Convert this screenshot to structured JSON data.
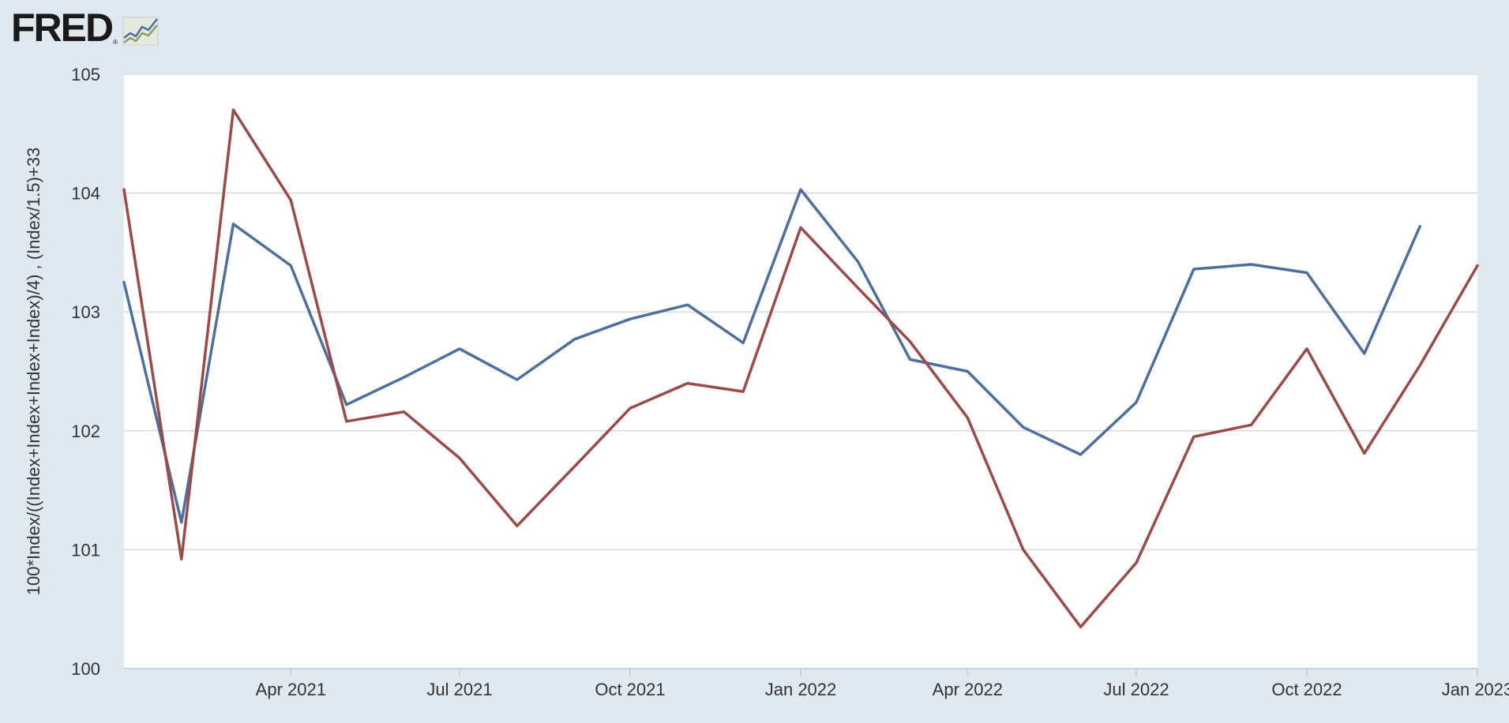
{
  "brand": {
    "logo_text": "FRED",
    "logo_mark": "®",
    "logo_icon": "line-chart-icon"
  },
  "colors": {
    "background": "#e1e9f0",
    "plot_background": "#ffffff",
    "grid": "#d9d9d9",
    "series_1": "#4e6f9e",
    "series_2": "#9c4a48"
  },
  "chart_data": {
    "type": "line",
    "ylabel": "100*Index/((Index+Index+Index+Index)/4) , (Index/1.5)+33",
    "xlabel": "",
    "ylim": [
      100,
      105
    ],
    "yticks": [
      100,
      101,
      102,
      103,
      104,
      105
    ],
    "xlim": [
      "2021-01-01",
      "2023-01-01"
    ],
    "xticks": [
      {
        "date": "2021-04-01",
        "label": "Apr 2021"
      },
      {
        "date": "2021-07-01",
        "label": "Jul 2021"
      },
      {
        "date": "2021-10-01",
        "label": "Oct 2021"
      },
      {
        "date": "2022-01-01",
        "label": "Jan 2022"
      },
      {
        "date": "2022-04-01",
        "label": "Apr 2022"
      },
      {
        "date": "2022-07-01",
        "label": "Jul 2022"
      },
      {
        "date": "2022-10-01",
        "label": "Oct 2022"
      },
      {
        "date": "2023-01-01",
        "label": "Jan 2023"
      }
    ],
    "grid": true,
    "series": [
      {
        "color": "#4e6f9e",
        "points": [
          [
            "2021-01-01",
            103.25
          ],
          [
            "2021-02-01",
            101.23
          ],
          [
            "2021-03-01",
            103.74
          ],
          [
            "2021-04-01",
            103.39
          ],
          [
            "2021-05-01",
            102.22
          ],
          [
            "2021-06-01",
            102.45
          ],
          [
            "2021-07-01",
            102.69
          ],
          [
            "2021-08-01",
            102.43
          ],
          [
            "2021-09-01",
            102.77
          ],
          [
            "2021-10-01",
            102.94
          ],
          [
            "2021-11-01",
            103.06
          ],
          [
            "2021-12-01",
            102.74
          ],
          [
            "2022-01-01",
            104.03
          ],
          [
            "2022-02-01",
            103.42
          ],
          [
            "2022-03-01",
            102.6
          ],
          [
            "2022-04-01",
            102.5
          ],
          [
            "2022-05-01",
            102.03
          ],
          [
            "2022-06-01",
            101.8
          ],
          [
            "2022-07-01",
            102.24
          ],
          [
            "2022-08-01",
            103.36
          ],
          [
            "2022-09-01",
            103.4
          ],
          [
            "2022-10-01",
            103.33
          ],
          [
            "2022-11-01",
            102.65
          ],
          [
            "2022-12-01",
            103.72
          ]
        ]
      },
      {
        "color": "#9c4a48",
        "points": [
          [
            "2021-01-01",
            104.03
          ],
          [
            "2021-02-01",
            100.92
          ],
          [
            "2021-03-01",
            104.7
          ],
          [
            "2021-04-01",
            103.94
          ],
          [
            "2021-05-01",
            102.08
          ],
          [
            "2021-06-01",
            102.16
          ],
          [
            "2021-07-01",
            101.77
          ],
          [
            "2021-08-01",
            101.2
          ],
          [
            "2021-09-01",
            101.7
          ],
          [
            "2021-10-01",
            102.19
          ],
          [
            "2021-11-01",
            102.4
          ],
          [
            "2021-12-01",
            102.33
          ],
          [
            "2022-01-01",
            103.71
          ],
          [
            "2022-02-01",
            103.2
          ],
          [
            "2022-03-01",
            102.75
          ],
          [
            "2022-04-01",
            102.11
          ],
          [
            "2022-05-01",
            101.0
          ],
          [
            "2022-06-01",
            100.35
          ],
          [
            "2022-07-01",
            100.89
          ],
          [
            "2022-08-01",
            101.95
          ],
          [
            "2022-09-01",
            102.05
          ],
          [
            "2022-10-01",
            102.69
          ],
          [
            "2022-11-01",
            101.81
          ],
          [
            "2022-12-01",
            102.55
          ],
          [
            "2023-01-01",
            103.39
          ]
        ]
      }
    ]
  }
}
